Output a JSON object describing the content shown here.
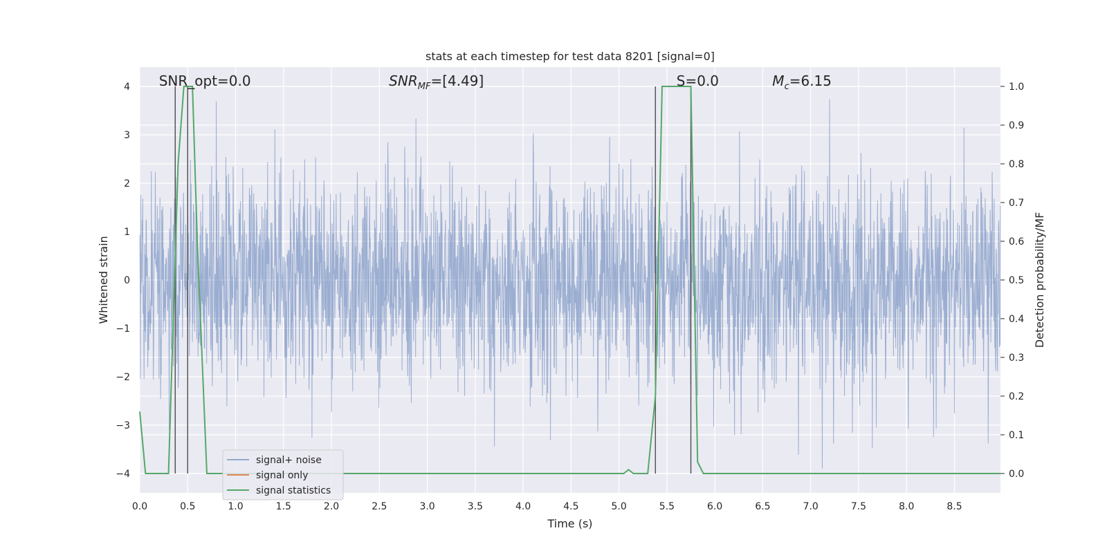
{
  "chart_data": {
    "type": "line",
    "title": "stats at each timestep for test data 8201 [signal=0]",
    "xlabel": "Time (s)",
    "ylabel_left": "Whitened strain",
    "ylabel_right": "Detection probability/MF",
    "xlim": [
      0.0,
      8.98
    ],
    "ylim_left": [
      -4.4,
      4.4
    ],
    "ylim_right": [
      -0.05,
      1.05
    ],
    "x_ticks": [
      "0.0",
      "0.5",
      "1.0",
      "1.5",
      "2.0",
      "2.5",
      "3.0",
      "3.5",
      "4.0",
      "4.5",
      "5.0",
      "5.5",
      "6.0",
      "6.5",
      "7.0",
      "7.5",
      "8.0",
      "8.5"
    ],
    "y_ticks_left": [
      "−4",
      "−3",
      "−2",
      "−1",
      "0",
      "1",
      "2",
      "3",
      "4"
    ],
    "y_ticks_right": [
      "0.0",
      "0.1",
      "0.2",
      "0.3",
      "0.4",
      "0.5",
      "0.6",
      "0.7",
      "0.8",
      "0.9",
      "1.0"
    ],
    "grid": true,
    "legend_position": "lower-left",
    "annotations": [
      {
        "text": "SNR_opt=0.0",
        "x": 0.2
      },
      {
        "text": "SNR_MF=[4.49]",
        "x": 2.6
      },
      {
        "text": "S=0.0",
        "x": 5.6
      },
      {
        "text": "M_c=6.15",
        "x": 6.6
      }
    ],
    "series": [
      {
        "name": "signal+ noise",
        "color": "#4c72b0",
        "kind": "noise",
        "sampling_rate_hz": 2048,
        "duration_s": 8.98,
        "approx_std": 1.0,
        "approx_range": [
          -3.9,
          4.0
        ]
      },
      {
        "name": "signal only",
        "color": "#dd8452",
        "x": [],
        "y": []
      },
      {
        "name": "signal statistics",
        "color": "#55a868",
        "x": [
          0.0,
          0.06,
          0.12,
          0.2,
          0.3,
          0.4,
          0.46,
          0.5,
          0.55,
          0.6,
          0.7,
          1.0,
          2.0,
          3.0,
          4.0,
          5.0,
          5.05,
          5.1,
          5.15,
          5.2,
          5.3,
          5.38,
          5.45,
          5.5,
          5.6,
          5.7,
          5.75,
          5.82,
          5.88,
          6.0,
          7.0,
          8.0,
          8.98
        ],
        "y": [
          0.16,
          0.0,
          0.0,
          0.0,
          0.0,
          0.8,
          1.0,
          1.0,
          1.0,
          0.6,
          0.0,
          0.0,
          0.0,
          0.0,
          0.0,
          0.0,
          0.0,
          0.01,
          0.0,
          0.0,
          0.0,
          0.2,
          1.0,
          1.0,
          1.0,
          1.0,
          1.0,
          0.03,
          0.0,
          0.0,
          0.0,
          0.0,
          0.0
        ]
      }
    ],
    "vertical_lines": [
      0.37,
      0.5,
      5.38,
      5.75
    ],
    "vertical_line_range": [
      -4.0,
      4.0
    ]
  }
}
